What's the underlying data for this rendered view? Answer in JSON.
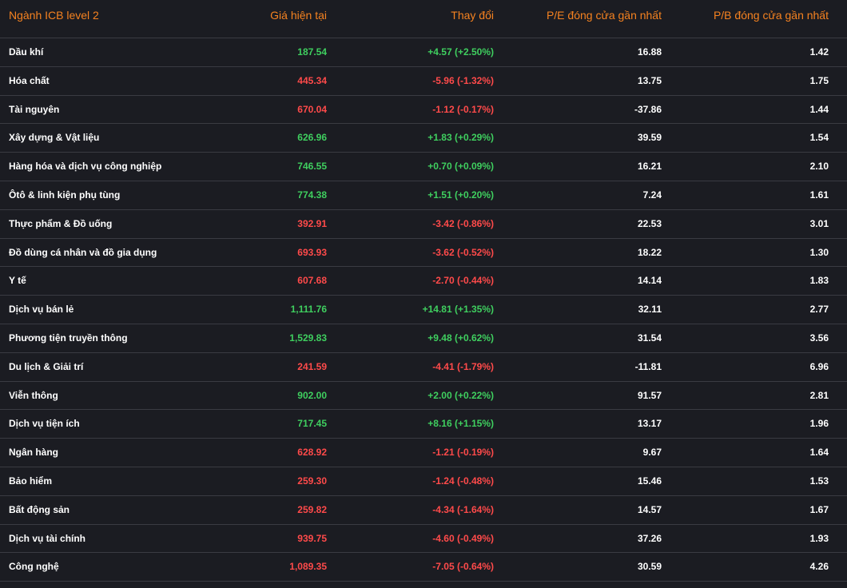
{
  "columns": [
    "Ngành ICB level 2",
    "Giá hiện tại",
    "Thay đổi",
    "P/E đóng cửa gần nhất",
    "P/B đóng cửa gần nhất"
  ],
  "colors": {
    "header": "#f58220",
    "up": "#3fcf5f",
    "down": "#ff4a4a",
    "background": "#1b1c22",
    "divider": "#3a3b42"
  },
  "rows": [
    {
      "name": "Dầu khí",
      "price": "187.54",
      "change": "+4.57 (+2.50%)",
      "pe": "16.88",
      "pb": "1.42",
      "trend": "up"
    },
    {
      "name": "Hóa chất",
      "price": "445.34",
      "change": "-5.96 (-1.32%)",
      "pe": "13.75",
      "pb": "1.75",
      "trend": "down"
    },
    {
      "name": "Tài nguyên",
      "price": "670.04",
      "change": "-1.12 (-0.17%)",
      "pe": "-37.86",
      "pb": "1.44",
      "trend": "down"
    },
    {
      "name": "Xây dựng & Vật liệu",
      "price": "626.96",
      "change": "+1.83 (+0.29%)",
      "pe": "39.59",
      "pb": "1.54",
      "trend": "up"
    },
    {
      "name": "Hàng hóa và dịch vụ công nghiệp",
      "price": "746.55",
      "change": "+0.70 (+0.09%)",
      "pe": "16.21",
      "pb": "2.10",
      "trend": "up"
    },
    {
      "name": "Ôtô & linh kiện phụ tùng",
      "price": "774.38",
      "change": "+1.51 (+0.20%)",
      "pe": "7.24",
      "pb": "1.61",
      "trend": "up"
    },
    {
      "name": "Thực phẩm & Đồ uống",
      "price": "392.91",
      "change": "-3.42 (-0.86%)",
      "pe": "22.53",
      "pb": "3.01",
      "trend": "down"
    },
    {
      "name": "Đồ dùng cá nhân và đồ gia dụng",
      "price": "693.93",
      "change": "-3.62 (-0.52%)",
      "pe": "18.22",
      "pb": "1.30",
      "trend": "down"
    },
    {
      "name": "Y tế",
      "price": "607.68",
      "change": "-2.70 (-0.44%)",
      "pe": "14.14",
      "pb": "1.83",
      "trend": "down"
    },
    {
      "name": "Dịch vụ bán lẻ",
      "price": "1,111.76",
      "change": "+14.81 (+1.35%)",
      "pe": "32.11",
      "pb": "2.77",
      "trend": "up"
    },
    {
      "name": "Phương tiện truyền thông",
      "price": "1,529.83",
      "change": "+9.48 (+0.62%)",
      "pe": "31.54",
      "pb": "3.56",
      "trend": "up"
    },
    {
      "name": "Du lịch & Giải trí",
      "price": "241.59",
      "change": "-4.41 (-1.79%)",
      "pe": "-11.81",
      "pb": "6.96",
      "trend": "down"
    },
    {
      "name": "Viễn thông",
      "price": "902.00",
      "change": "+2.00 (+0.22%)",
      "pe": "91.57",
      "pb": "2.81",
      "trend": "up"
    },
    {
      "name": "Dịch vụ tiện ích",
      "price": "717.45",
      "change": "+8.16 (+1.15%)",
      "pe": "13.17",
      "pb": "1.96",
      "trend": "up"
    },
    {
      "name": "Ngân hàng",
      "price": "628.92",
      "change": "-1.21 (-0.19%)",
      "pe": "9.67",
      "pb": "1.64",
      "trend": "down"
    },
    {
      "name": "Bảo hiểm",
      "price": "259.30",
      "change": "-1.24 (-0.48%)",
      "pe": "15.46",
      "pb": "1.53",
      "trend": "down"
    },
    {
      "name": "Bất động sản",
      "price": "259.82",
      "change": "-4.34 (-1.64%)",
      "pe": "14.57",
      "pb": "1.67",
      "trend": "down"
    },
    {
      "name": "Dịch vụ tài chính",
      "price": "939.75",
      "change": "-4.60 (-0.49%)",
      "pe": "37.26",
      "pb": "1.93",
      "trend": "down"
    },
    {
      "name": "Công nghệ",
      "price": "1,089.35",
      "change": "-7.05 (-0.64%)",
      "pe": "30.59",
      "pb": "4.26",
      "trend": "down"
    }
  ]
}
